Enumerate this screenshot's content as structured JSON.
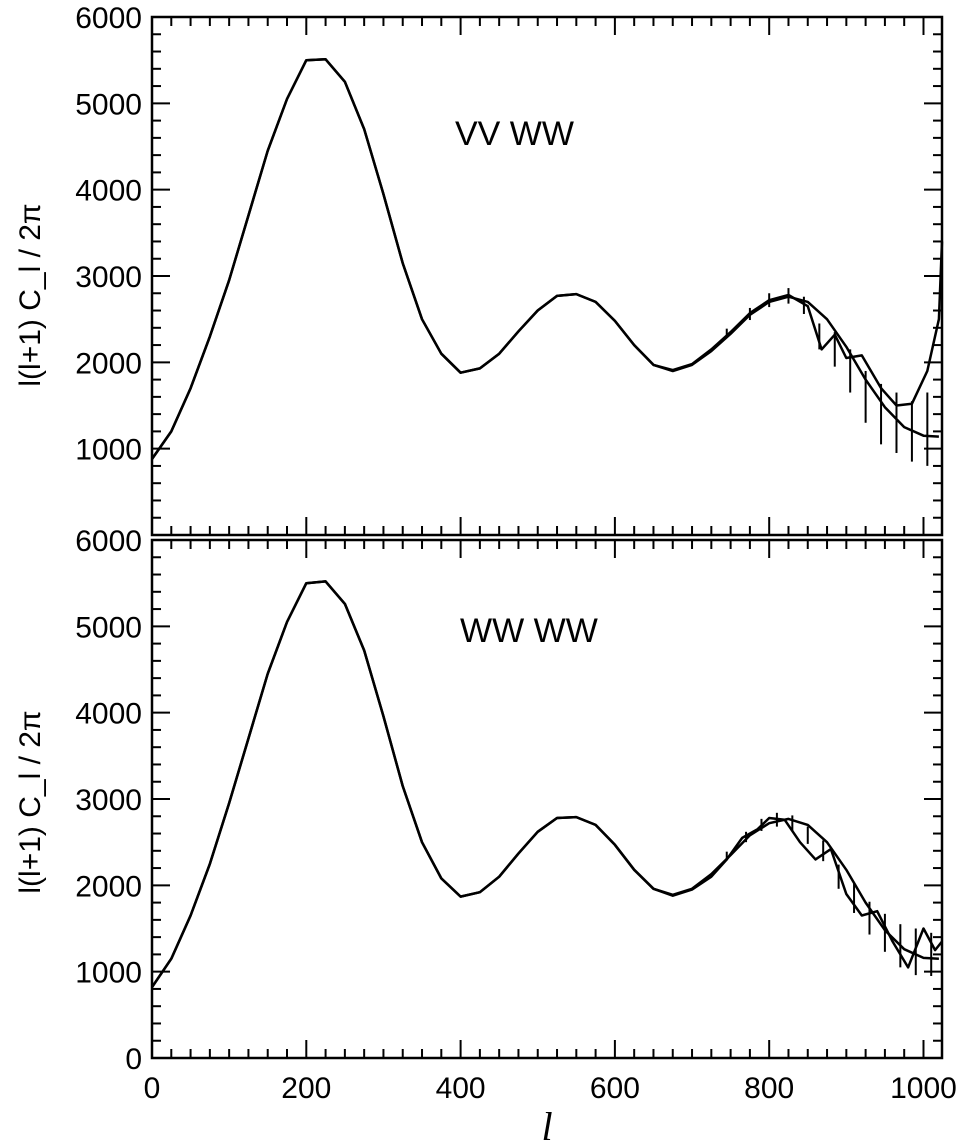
{
  "chart_data": [
    {
      "type": "line",
      "annotation": "VV WW",
      "ylabel": "l(l+1) C_l / 2π",
      "xlabel": "",
      "xlim": [
        0,
        1024
      ],
      "ylim": [
        0,
        6000
      ],
      "yticks": [
        "1000",
        "2000",
        "3000",
        "4000",
        "5000",
        "6000"
      ],
      "xticks": [],
      "series": [
        {
          "x": [
            0,
            25,
            50,
            75,
            100,
            125,
            150,
            175,
            200,
            225,
            250,
            275,
            300,
            325,
            350,
            375,
            400,
            425,
            450,
            475,
            500,
            525,
            550,
            575,
            600,
            625,
            650,
            675,
            700,
            725,
            750,
            775,
            800,
            825,
            850,
            875,
            900,
            925,
            950,
            975,
            1000,
            1020
          ],
          "y": [
            880,
            1200,
            1700,
            2300,
            2950,
            3700,
            4450,
            5050,
            5500,
            5510,
            5250,
            4700,
            3950,
            3150,
            2500,
            2100,
            1880,
            1930,
            2100,
            2360,
            2600,
            2770,
            2790,
            2700,
            2480,
            2200,
            1970,
            1900,
            1970,
            2130,
            2330,
            2550,
            2700,
            2760,
            2700,
            2500,
            2180,
            1800,
            1480,
            1250,
            1150,
            1140
          ]
        },
        {
          "x": [
            0,
            25,
            50,
            75,
            100,
            125,
            150,
            175,
            200,
            225,
            250,
            275,
            300,
            325,
            350,
            375,
            400,
            425,
            450,
            475,
            500,
            525,
            550,
            575,
            600,
            625,
            650,
            675,
            700,
            725,
            750,
            775,
            800,
            825,
            850,
            868,
            885,
            900,
            920,
            945,
            965,
            985,
            1005,
            1020,
            1024
          ],
          "y": [
            880,
            1200,
            1700,
            2300,
            2950,
            3700,
            4450,
            5050,
            5500,
            5510,
            5250,
            4700,
            3950,
            3150,
            2500,
            2100,
            1880,
            1930,
            2100,
            2360,
            2600,
            2770,
            2790,
            2700,
            2480,
            2200,
            1970,
            1910,
            1980,
            2150,
            2350,
            2570,
            2720,
            2780,
            2650,
            2150,
            2320,
            2050,
            2080,
            1700,
            1500,
            1520,
            1900,
            2500,
            3400
          ]
        }
      ],
      "error_bars": [
        {
          "x": 745,
          "y": 2340,
          "lo": 2290,
          "hi": 2390
        },
        {
          "x": 775,
          "y": 2560,
          "lo": 2490,
          "hi": 2630
        },
        {
          "x": 800,
          "y": 2720,
          "lo": 2640,
          "hi": 2800
        },
        {
          "x": 825,
          "y": 2770,
          "lo": 2680,
          "hi": 2860
        },
        {
          "x": 845,
          "y": 2660,
          "lo": 2560,
          "hi": 2760
        },
        {
          "x": 865,
          "y": 2300,
          "lo": 2150,
          "hi": 2450
        },
        {
          "x": 885,
          "y": 2150,
          "lo": 1950,
          "hi": 2350
        },
        {
          "x": 905,
          "y": 1900,
          "lo": 1650,
          "hi": 2150
        },
        {
          "x": 925,
          "y": 1600,
          "lo": 1300,
          "hi": 1900
        },
        {
          "x": 945,
          "y": 1400,
          "lo": 1050,
          "hi": 1750
        },
        {
          "x": 965,
          "y": 1300,
          "lo": 950,
          "hi": 1650
        },
        {
          "x": 985,
          "y": 1200,
          "lo": 850,
          "hi": 1550
        },
        {
          "x": 1005,
          "y": 1150,
          "lo": 800,
          "hi": 1650
        }
      ]
    },
    {
      "type": "line",
      "annotation": "WW WW",
      "ylabel": "l(l+1) C_l / 2π",
      "xlabel": "l",
      "xlim": [
        0,
        1024
      ],
      "ylim": [
        0,
        6000
      ],
      "yticks": [
        "0",
        "1000",
        "2000",
        "3000",
        "4000",
        "5000",
        "6000"
      ],
      "xticks": [
        "0",
        "200",
        "400",
        "600",
        "800",
        "1000"
      ],
      "series": [
        {
          "x": [
            0,
            25,
            50,
            75,
            100,
            125,
            150,
            175,
            200,
            225,
            250,
            275,
            300,
            325,
            350,
            375,
            400,
            425,
            450,
            475,
            500,
            525,
            550,
            575,
            600,
            625,
            650,
            675,
            700,
            725,
            750,
            775,
            800,
            825,
            850,
            875,
            900,
            925,
            950,
            975,
            1000,
            1020
          ],
          "y": [
            820,
            1150,
            1650,
            2250,
            2950,
            3700,
            4450,
            5050,
            5500,
            5520,
            5260,
            4720,
            3960,
            3150,
            2500,
            2080,
            1870,
            1920,
            2100,
            2370,
            2620,
            2780,
            2790,
            2700,
            2470,
            2180,
            1960,
            1890,
            1960,
            2130,
            2350,
            2580,
            2720,
            2770,
            2700,
            2500,
            2180,
            1800,
            1480,
            1260,
            1160,
            1150
          ]
        },
        {
          "x": [
            0,
            25,
            50,
            75,
            100,
            125,
            150,
            175,
            200,
            225,
            250,
            275,
            300,
            325,
            350,
            375,
            400,
            425,
            450,
            475,
            500,
            525,
            550,
            575,
            600,
            625,
            650,
            675,
            700,
            725,
            745,
            765,
            785,
            800,
            820,
            840,
            860,
            880,
            900,
            920,
            940,
            960,
            980,
            1000,
            1015,
            1024
          ],
          "y": [
            820,
            1150,
            1650,
            2250,
            2950,
            3700,
            4450,
            5050,
            5500,
            5520,
            5260,
            4720,
            3960,
            3150,
            2500,
            2080,
            1870,
            1920,
            2100,
            2370,
            2620,
            2780,
            2790,
            2700,
            2470,
            2180,
            1960,
            1880,
            1950,
            2100,
            2300,
            2550,
            2650,
            2780,
            2760,
            2500,
            2300,
            2420,
            1900,
            1650,
            1700,
            1350,
            1050,
            1500,
            1250,
            1350
          ]
        }
      ],
      "error_bars": [
        {
          "x": 745,
          "y": 2340,
          "lo": 2290,
          "hi": 2390
        },
        {
          "x": 770,
          "y": 2560,
          "lo": 2500,
          "hi": 2620
        },
        {
          "x": 790,
          "y": 2700,
          "lo": 2630,
          "hi": 2770
        },
        {
          "x": 810,
          "y": 2760,
          "lo": 2680,
          "hi": 2840
        },
        {
          "x": 830,
          "y": 2720,
          "lo": 2630,
          "hi": 2810
        },
        {
          "x": 850,
          "y": 2580,
          "lo": 2480,
          "hi": 2680
        },
        {
          "x": 870,
          "y": 2400,
          "lo": 2280,
          "hi": 2520
        },
        {
          "x": 890,
          "y": 2100,
          "lo": 1960,
          "hi": 2240
        },
        {
          "x": 910,
          "y": 1850,
          "lo": 1680,
          "hi": 2020
        },
        {
          "x": 930,
          "y": 1620,
          "lo": 1430,
          "hi": 1810
        },
        {
          "x": 950,
          "y": 1450,
          "lo": 1230,
          "hi": 1670
        },
        {
          "x": 970,
          "y": 1300,
          "lo": 1050,
          "hi": 1550
        },
        {
          "x": 990,
          "y": 1230,
          "lo": 960,
          "hi": 1500
        },
        {
          "x": 1010,
          "y": 1200,
          "lo": 950,
          "hi": 1450
        }
      ]
    }
  ]
}
